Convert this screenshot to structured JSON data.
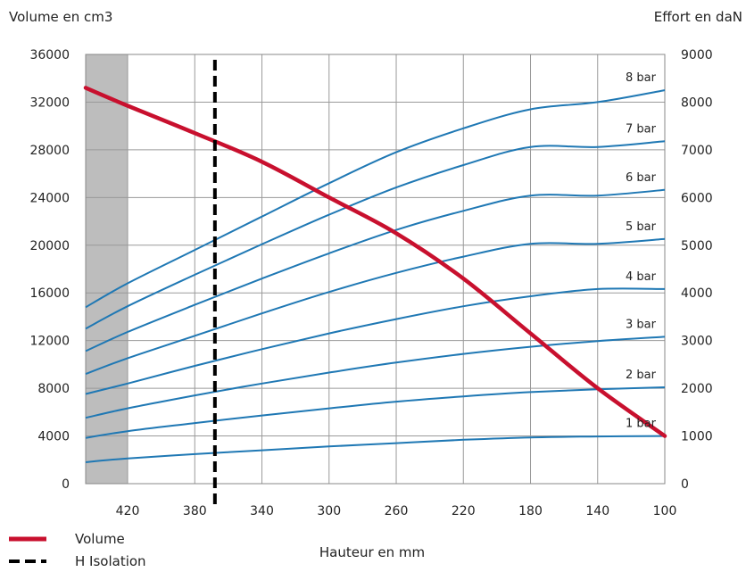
{
  "chart_data": {
    "type": "line",
    "ylabel_left": "Volume en cm3",
    "ylabel_right": "Effort en daN",
    "xlabel": "Hauteur en mm",
    "x_ticks": [
      420,
      380,
      340,
      300,
      260,
      220,
      180,
      140,
      100
    ],
    "x_range": [
      445,
      100
    ],
    "x_reversed": true,
    "y_left_ticks": [
      0,
      4000,
      8000,
      12000,
      16000,
      20000,
      24000,
      28000,
      32000,
      36000
    ],
    "y_left_range": [
      0,
      36000
    ],
    "y_right_ticks": [
      0,
      1000,
      2000,
      3000,
      4000,
      5000,
      6000,
      7000,
      8000,
      9000
    ],
    "y_right_range": [
      0,
      9000
    ],
    "grid": true,
    "shaded_region": {
      "x_from": 445,
      "x_to": 420,
      "color": "#bdbdbd"
    },
    "colors": {
      "effort": "#1f78b4",
      "volume": "#c8102e",
      "isolation": "#000000",
      "grid": "#9a9a9a"
    },
    "volume": {
      "name": "Volume",
      "axis": "left",
      "x": [
        445,
        420,
        380,
        340,
        300,
        260,
        220,
        180,
        140,
        100
      ],
      "y": [
        33200,
        31700,
        29400,
        27000,
        24000,
        21000,
        17200,
        12600,
        8000,
        4000
      ]
    },
    "isolation": {
      "name": "H Isolation",
      "x": 368
    },
    "effort_series": [
      {
        "name": "1 bar",
        "axis": "right",
        "x": [
          445,
          420,
          380,
          340,
          300,
          260,
          220,
          180,
          140,
          100
        ],
        "y": [
          450,
          530,
          620,
          700,
          780,
          850,
          920,
          970,
          990,
          1000
        ]
      },
      {
        "name": "2 bar",
        "axis": "right",
        "x": [
          445,
          420,
          380,
          340,
          300,
          260,
          220,
          180,
          140,
          100
        ],
        "y": [
          960,
          1100,
          1270,
          1430,
          1580,
          1720,
          1830,
          1920,
          1980,
          2020
        ]
      },
      {
        "name": "3 bar",
        "axis": "right",
        "x": [
          445,
          420,
          380,
          340,
          300,
          260,
          220,
          180,
          140,
          100
        ],
        "y": [
          1380,
          1580,
          1850,
          2100,
          2330,
          2540,
          2720,
          2870,
          2990,
          3080
        ]
      },
      {
        "name": "4 bar",
        "axis": "right",
        "x": [
          445,
          420,
          380,
          340,
          300,
          260,
          220,
          180,
          140,
          100
        ],
        "y": [
          1880,
          2100,
          2470,
          2820,
          3150,
          3450,
          3720,
          3930,
          4080,
          4080
        ]
      },
      {
        "name": "5 bar",
        "axis": "right",
        "x": [
          445,
          420,
          380,
          340,
          300,
          260,
          220,
          180,
          140,
          100
        ],
        "y": [
          2300,
          2630,
          3100,
          3570,
          4020,
          4420,
          4760,
          5030,
          5030,
          5130
        ]
      },
      {
        "name": "6 bar",
        "axis": "right",
        "x": [
          445,
          420,
          380,
          340,
          300,
          260,
          220,
          180,
          140,
          100
        ],
        "y": [
          2780,
          3180,
          3750,
          4300,
          4830,
          5320,
          5720,
          6040,
          6040,
          6160
        ]
      },
      {
        "name": "7 bar",
        "axis": "right",
        "x": [
          445,
          420,
          380,
          340,
          300,
          260,
          220,
          180,
          140,
          100
        ],
        "y": [
          3250,
          3720,
          4380,
          5020,
          5640,
          6210,
          6680,
          7060,
          7060,
          7180
        ]
      },
      {
        "name": "8 bar",
        "axis": "right",
        "x": [
          445,
          420,
          380,
          340,
          300,
          260,
          220,
          180,
          140,
          100
        ],
        "y": [
          3700,
          4200,
          4900,
          5600,
          6300,
          6950,
          7450,
          7850,
          8000,
          8250
        ]
      }
    ],
    "legend": [
      {
        "label": "Volume",
        "style": "solid"
      },
      {
        "label": "H Isolation",
        "style": "dashed"
      }
    ],
    "legend_placement": "bottom-left"
  }
}
